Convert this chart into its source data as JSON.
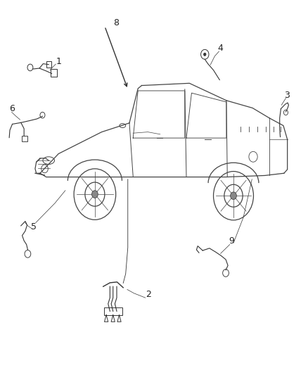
{
  "background_color": "#ffffff",
  "figure_width": 4.38,
  "figure_height": 5.33,
  "dpi": 100,
  "truck_color": "#444444",
  "wire_color": "#333333",
  "label_fontsize": 9,
  "label_color": "#222222"
}
